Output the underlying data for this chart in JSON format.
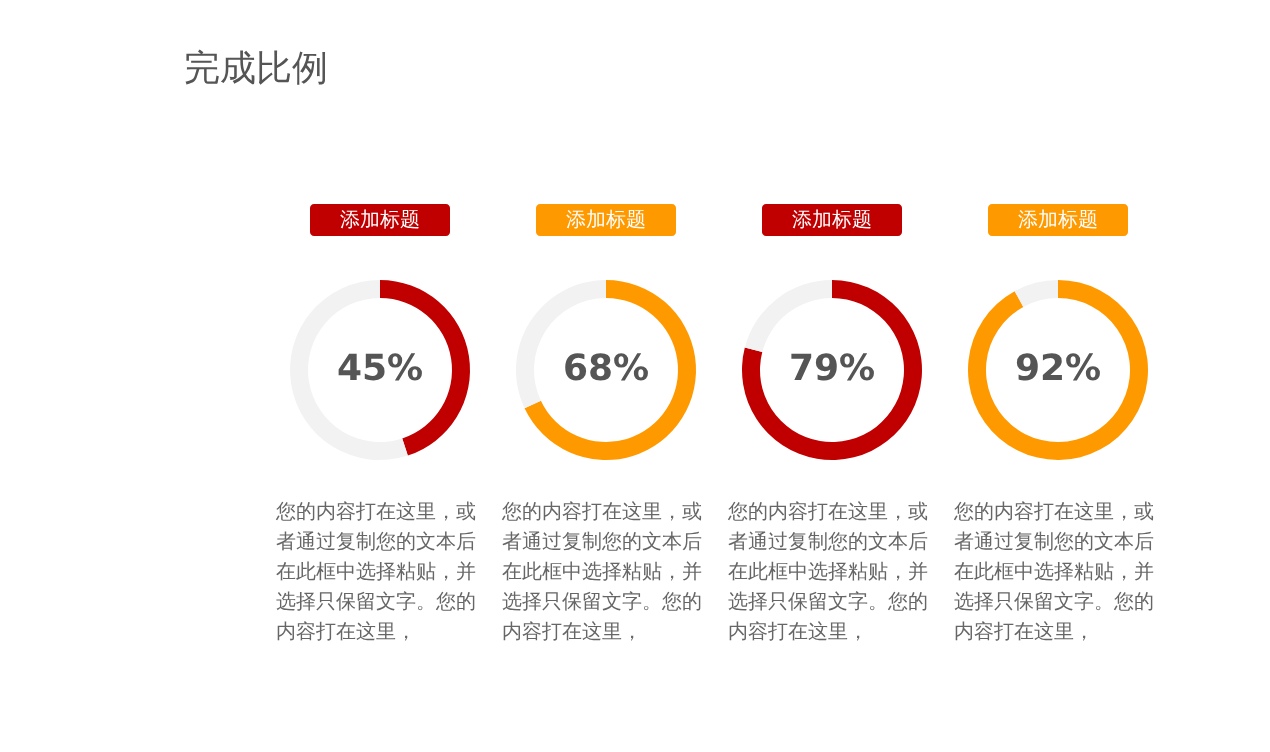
{
  "chart_data": [
    {
      "type": "other",
      "title": "完成比例"
    },
    {
      "type": "donut",
      "title": "添加标题",
      "categories": [
        null,
        null
      ],
      "values": [
        45,
        55
      ],
      "colors": [
        "#c00000",
        "#f2f2f2"
      ],
      "value_labels": [
        "45%",
        null
      ],
      "annotations": [
        "您的内容打在这里，或者通过复制您的文本后在此框中选择粘贴，并选择只保留文字。您的内容打在这里，"
      ]
    },
    {
      "type": "donut",
      "title": "添加标题",
      "categories": [
        null,
        null
      ],
      "values": [
        68,
        32
      ],
      "colors": [
        "#ff9900",
        "#f2f2f2"
      ],
      "value_labels": [
        "68%",
        null
      ],
      "annotations": [
        "您的内容打在这里，或者通过复制您的文本后在此框中选择粘贴，并选择只保留文字。您的内容打在这里，"
      ]
    },
    {
      "type": "donut",
      "title": "添加标题",
      "categories": [
        null,
        null
      ],
      "values": [
        79,
        21
      ],
      "colors": [
        "#c00000",
        "#f2f2f2"
      ],
      "value_labels": [
        "79%",
        null
      ],
      "annotations": [
        "您的内容打在这里，或者通过复制您的文本后在此框中选择粘贴，并选择只保留文字。您的内容打在这里，"
      ]
    },
    {
      "type": "donut",
      "title": "添加标题",
      "categories": [
        null,
        null
      ],
      "values": [
        92,
        8
      ],
      "colors": [
        "#ff9900",
        "#f2f2f2"
      ],
      "value_labels": [
        "92%",
        null
      ],
      "annotations": [
        "您的内容打在这里，或者通过复制您的文本后在此框中选择粘贴，并选择只保留文字。您的内容打在这里，"
      ]
    }
  ]
}
